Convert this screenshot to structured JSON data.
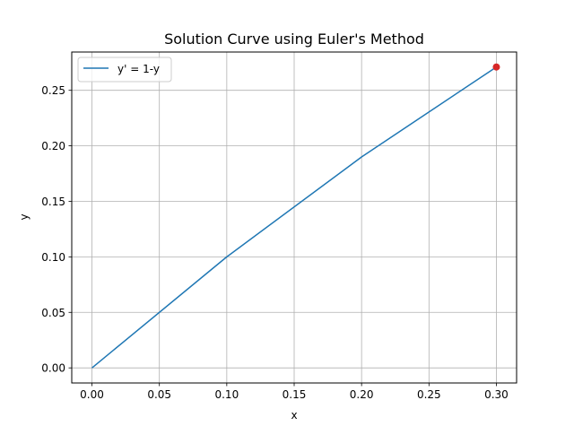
{
  "chart_data": {
    "type": "line",
    "title": "Solution Curve using Euler's Method",
    "xlabel": "x",
    "ylabel": "y",
    "xlim": [
      -0.015,
      0.315
    ],
    "ylim": [
      -0.0136,
      0.2845
    ],
    "xticks": [
      0.0,
      0.05,
      0.1,
      0.15,
      0.2,
      0.25,
      0.3
    ],
    "xtick_labels": [
      "0.00",
      "0.05",
      "0.10",
      "0.15",
      "0.20",
      "0.25",
      "0.30"
    ],
    "yticks": [
      0.0,
      0.05,
      0.1,
      0.15,
      0.2,
      0.25
    ],
    "ytick_labels": [
      "0.00",
      "0.05",
      "0.10",
      "0.15",
      "0.20",
      "0.25"
    ],
    "grid": true,
    "legend": {
      "position": "upper-left"
    },
    "series": [
      {
        "name": "y' = 1-y",
        "x": [
          0.0,
          0.1,
          0.2,
          0.3
        ],
        "y": [
          0.0,
          0.1,
          0.19,
          0.271
        ],
        "color": "#1f77b4"
      }
    ],
    "highlight_point": {
      "x": 0.3,
      "y": 0.271,
      "color": "#d62728"
    }
  }
}
